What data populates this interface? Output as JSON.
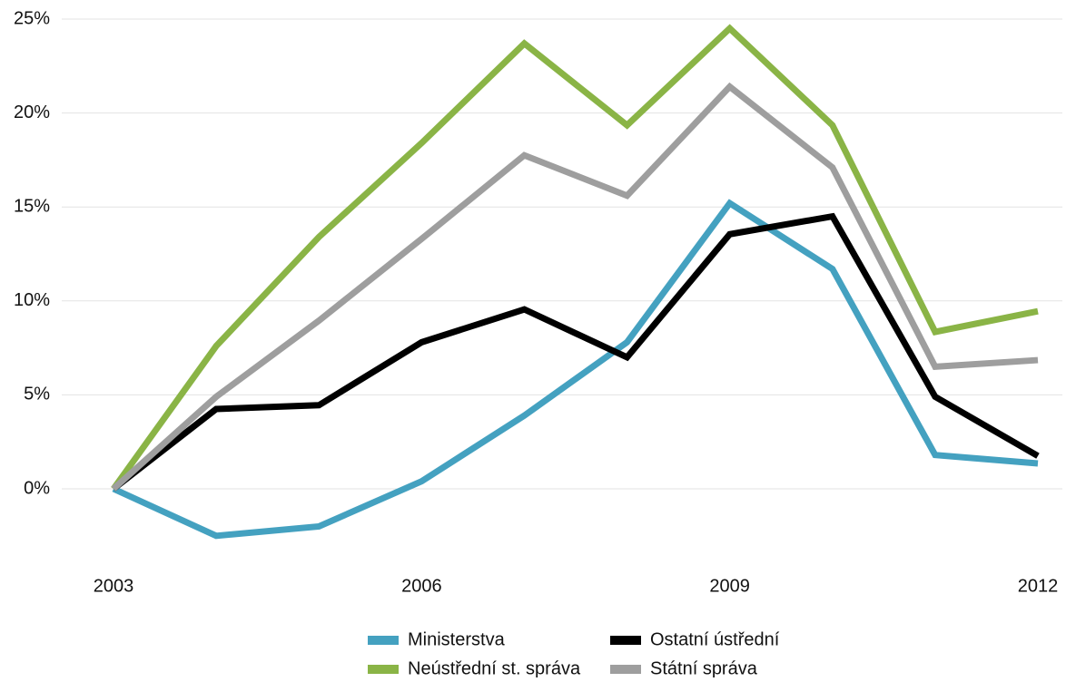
{
  "chart_data": {
    "type": "line",
    "x": [
      2003,
      2004,
      2005,
      2006,
      2007,
      2008,
      2009,
      2010,
      2011,
      2012
    ],
    "series": [
      {
        "name": "Ministerstva",
        "color": "#44a1c0",
        "values": [
          0,
          -2.5,
          -2.0,
          0.4,
          3.9,
          7.8,
          15.2,
          11.7,
          1.8,
          1.35
        ]
      },
      {
        "name": "Ostatní ústřední",
        "color": "#000000",
        "values": [
          0,
          4.25,
          4.45,
          7.8,
          9.55,
          7.0,
          13.55,
          14.5,
          4.9,
          1.75
        ]
      },
      {
        "name": "Neústřední st. správa",
        "color": "#8ab446",
        "values": [
          0,
          7.6,
          13.4,
          18.4,
          23.7,
          19.35,
          24.5,
          19.35,
          8.35,
          9.45
        ]
      },
      {
        "name": "Státní správa",
        "color": "#9e9e9e",
        "values": [
          0,
          4.9,
          8.95,
          13.3,
          17.75,
          15.6,
          21.4,
          17.1,
          6.5,
          6.85
        ]
      }
    ],
    "xlim": [
      2003,
      2012
    ],
    "xticks": [
      2003,
      2006,
      2009,
      2012
    ],
    "ylim": [
      -3,
      25
    ],
    "yticks": [
      {
        "value": 0,
        "label": "0%"
      },
      {
        "value": 5,
        "label": "5%"
      },
      {
        "value": 10,
        "label": "10%"
      },
      {
        "value": 15,
        "label": "15%"
      },
      {
        "value": 20,
        "label": "20%"
      },
      {
        "value": 25,
        "label": "25%"
      }
    ],
    "grid": true,
    "legend": "bottom"
  }
}
